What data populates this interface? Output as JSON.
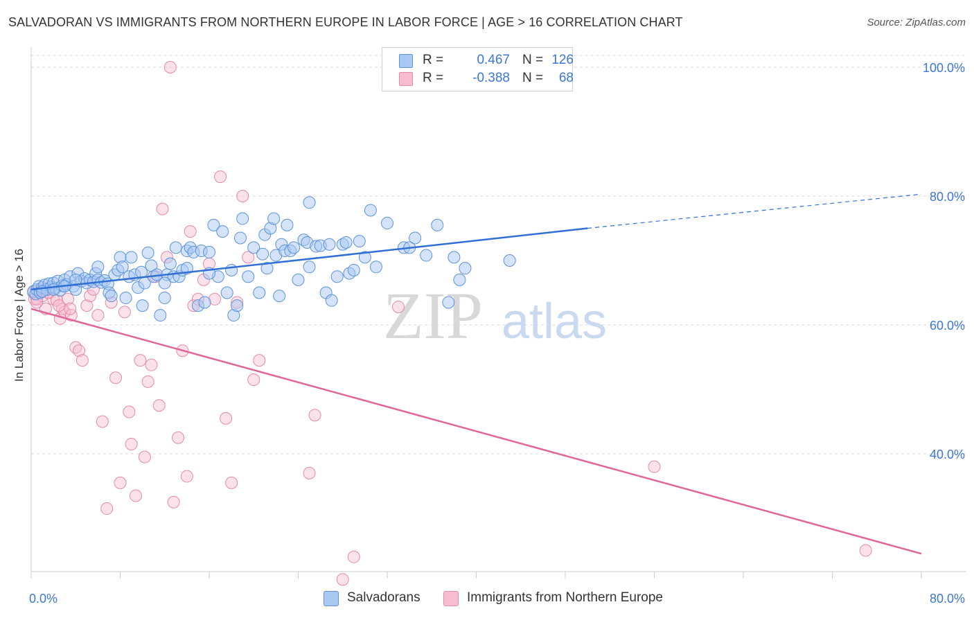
{
  "header": {
    "title": "SALVADORAN VS IMMIGRANTS FROM NORTHERN EUROPE IN LABOR FORCE | AGE > 16 CORRELATION CHART",
    "source": "Source: ZipAtlas.com"
  },
  "watermark": {
    "zip": "ZIP",
    "atlas": "atlas"
  },
  "legend": {
    "rows": [
      {
        "r_label": "R =",
        "r_value": "0.467",
        "n_label": "N =",
        "n_value": "126",
        "color": "#a9c8f2"
      },
      {
        "r_label": "R =",
        "r_value": "-0.388",
        "n_label": "N =",
        "n_value": "68",
        "color": "#f7bcd0"
      }
    ]
  },
  "bottom_legend": {
    "items": [
      {
        "label": "Salvadorans",
        "color": "#a9c8f2"
      },
      {
        "label": "Immigrants from Northern Europe",
        "color": "#f7bcd0"
      }
    ]
  },
  "colors": {
    "blue_fill": "#a9c8f2",
    "blue_stroke": "#5b93dc",
    "blue_line": "#2f6fd6",
    "pink_fill": "#f7bcd0",
    "pink_stroke": "#e58aa9",
    "pink_line": "#e0669a",
    "grid": "#d9d9d9",
    "tick_text": "#3b77d3"
  },
  "chart_data": {
    "type": "scatter",
    "title": "SALVADORAN VS IMMIGRANTS FROM NORTHERN EUROPE IN LABOR FORCE | AGE > 16 CORRELATION CHART",
    "xlabel": "",
    "ylabel": "In Labor Force | Age > 16",
    "xlim": [
      0,
      80
    ],
    "ylim": [
      20,
      100
    ],
    "x_tick_labels": [
      "0.0%",
      "80.0%"
    ],
    "y_ticks": [
      40,
      60,
      80,
      100
    ],
    "y_tick_labels": [
      "40.0%",
      "60.0%",
      "80.0%",
      "100.0%"
    ],
    "grid": true,
    "legend_placement": "top-center",
    "series": [
      {
        "name": "Salvadorans",
        "trend": {
          "x": [
            0,
            50
          ],
          "y": [
            65.5,
            75.0
          ],
          "dashed_to": [
            80,
            80.3
          ]
        },
        "points": [
          [
            0.2,
            65.2
          ],
          [
            0.4,
            64.8
          ],
          [
            0.5,
            65.5
          ],
          [
            0.7,
            66.0
          ],
          [
            0.8,
            65.0
          ],
          [
            1.0,
            65.8
          ],
          [
            1.2,
            66.2
          ],
          [
            1.4,
            65.5
          ],
          [
            1.6,
            66.4
          ],
          [
            1.8,
            65.9
          ],
          [
            2.0,
            66.5
          ],
          [
            2.2,
            65.7
          ],
          [
            2.4,
            66.8
          ],
          [
            2.6,
            65.4
          ],
          [
            2.8,
            66.1
          ],
          [
            3.0,
            67.0
          ],
          [
            3.2,
            66.3
          ],
          [
            3.5,
            67.5
          ],
          [
            3.8,
            66.0
          ],
          [
            4.0,
            65.5
          ],
          [
            4.2,
            68.0
          ],
          [
            4.5,
            66.8
          ],
          [
            4.8,
            67.2
          ],
          [
            5.0,
            66.5
          ],
          [
            5.3,
            67.0
          ],
          [
            5.6,
            66.7
          ],
          [
            5.8,
            68.0
          ],
          [
            6.0,
            67.0
          ],
          [
            6.3,
            66.6
          ],
          [
            6.6,
            66.9
          ],
          [
            6.9,
            66.4
          ],
          [
            7.0,
            65.0
          ],
          [
            7.2,
            64.5
          ],
          [
            7.5,
            67.8
          ],
          [
            7.8,
            68.5
          ],
          [
            8.0,
            70.5
          ],
          [
            8.2,
            69.0
          ],
          [
            8.5,
            64.2
          ],
          [
            8.8,
            67.5
          ],
          [
            9.0,
            70.5
          ],
          [
            9.3,
            67.8
          ],
          [
            9.6,
            65.8
          ],
          [
            9.9,
            68.2
          ],
          [
            10.0,
            63.0
          ],
          [
            10.2,
            66.5
          ],
          [
            10.5,
            71.2
          ],
          [
            10.8,
            69.2
          ],
          [
            11.0,
            67.5
          ],
          [
            11.3,
            67.8
          ],
          [
            11.6,
            61.5
          ],
          [
            12.0,
            64.2
          ],
          [
            12.2,
            67.8
          ],
          [
            12.5,
            69.5
          ],
          [
            12.8,
            67.5
          ],
          [
            13.0,
            72.0
          ],
          [
            13.3,
            67.5
          ],
          [
            13.6,
            68.5
          ],
          [
            14.0,
            71.5
          ],
          [
            14.3,
            72.0
          ],
          [
            14.6,
            71.3
          ],
          [
            15.0,
            63.0
          ],
          [
            15.3,
            71.5
          ],
          [
            15.6,
            63.5
          ],
          [
            16.0,
            71.3
          ],
          [
            16.4,
            75.5
          ],
          [
            16.8,
            67.5
          ],
          [
            17.2,
            74.5
          ],
          [
            17.6,
            65.0
          ],
          [
            18.0,
            68.5
          ],
          [
            18.2,
            61.5
          ],
          [
            18.5,
            63.0
          ],
          [
            18.8,
            73.5
          ],
          [
            19.0,
            76.5
          ],
          [
            19.5,
            67.5
          ],
          [
            20.0,
            72.0
          ],
          [
            20.5,
            65.0
          ],
          [
            20.8,
            71.0
          ],
          [
            21.0,
            74.0
          ],
          [
            21.2,
            68.8
          ],
          [
            21.5,
            75.0
          ],
          [
            21.8,
            76.5
          ],
          [
            22.0,
            70.8
          ],
          [
            22.3,
            64.5
          ],
          [
            22.5,
            72.5
          ],
          [
            22.8,
            71.5
          ],
          [
            23.0,
            75.5
          ],
          [
            23.3,
            71.5
          ],
          [
            23.6,
            72.0
          ],
          [
            24.0,
            67.0
          ],
          [
            24.5,
            73.2
          ],
          [
            24.8,
            72.8
          ],
          [
            25.0,
            69.0
          ],
          [
            25.6,
            72.2
          ],
          [
            26.0,
            72.3
          ],
          [
            26.5,
            65.0
          ],
          [
            26.8,
            72.5
          ],
          [
            27.0,
            63.8
          ],
          [
            27.5,
            67.5
          ],
          [
            28.0,
            72.5
          ],
          [
            28.3,
            72.8
          ],
          [
            28.6,
            68.0
          ],
          [
            29.0,
            68.5
          ],
          [
            29.5,
            73.0
          ],
          [
            30.0,
            70.5
          ],
          [
            30.5,
            77.8
          ],
          [
            31.0,
            69.0
          ],
          [
            32.0,
            75.8
          ],
          [
            33.5,
            72.0
          ],
          [
            34.0,
            72.0
          ],
          [
            34.5,
            73.5
          ],
          [
            35.5,
            70.8
          ],
          [
            36.5,
            75.5
          ],
          [
            37.5,
            63.5
          ],
          [
            38.0,
            70.5
          ],
          [
            38.5,
            67.0
          ],
          [
            39.0,
            68.8
          ],
          [
            43.0,
            70.0
          ],
          [
            25.0,
            79.0
          ],
          [
            16.0,
            68.0
          ],
          [
            14.0,
            68.8
          ],
          [
            12.0,
            66.5
          ],
          [
            6.0,
            69.0
          ],
          [
            4.0,
            67.0
          ],
          [
            3.0,
            66.0
          ],
          [
            2.0,
            65.5
          ],
          [
            1.0,
            65.2
          ]
        ]
      },
      {
        "name": "Immigrants from Northern Europe",
        "trend": {
          "x": [
            0,
            80
          ],
          "y": [
            62.5,
            24.5
          ]
        },
        "points": [
          [
            0.2,
            65.0
          ],
          [
            0.3,
            64.0
          ],
          [
            0.5,
            63.5
          ],
          [
            0.7,
            65.5
          ],
          [
            1.0,
            64.5
          ],
          [
            1.3,
            62.5
          ],
          [
            1.6,
            65.0
          ],
          [
            2.0,
            64.0
          ],
          [
            2.3,
            63.8
          ],
          [
            2.6,
            61.0
          ],
          [
            2.8,
            62.5
          ],
          [
            3.0,
            62.0
          ],
          [
            3.3,
            64.0
          ],
          [
            3.6,
            61.5
          ],
          [
            4.0,
            56.5
          ],
          [
            4.3,
            56.0
          ],
          [
            4.6,
            54.5
          ],
          [
            5.0,
            63.0
          ],
          [
            5.3,
            64.5
          ],
          [
            5.6,
            65.5
          ],
          [
            6.0,
            61.5
          ],
          [
            6.4,
            45.0
          ],
          [
            6.8,
            31.5
          ],
          [
            7.2,
            63.5
          ],
          [
            7.6,
            51.8
          ],
          [
            8.0,
            35.5
          ],
          [
            8.4,
            62.0
          ],
          [
            8.8,
            46.5
          ],
          [
            9.0,
            41.5
          ],
          [
            9.4,
            33.5
          ],
          [
            9.8,
            54.5
          ],
          [
            10.2,
            39.5
          ],
          [
            10.5,
            51.2
          ],
          [
            10.8,
            53.8
          ],
          [
            11.2,
            67.5
          ],
          [
            11.5,
            47.5
          ],
          [
            11.8,
            78.0
          ],
          [
            12.2,
            70.5
          ],
          [
            12.5,
            100.0
          ],
          [
            12.8,
            32.5
          ],
          [
            13.2,
            42.5
          ],
          [
            13.6,
            56.0
          ],
          [
            14.0,
            36.5
          ],
          [
            14.3,
            74.5
          ],
          [
            14.6,
            63.0
          ],
          [
            15.0,
            64.0
          ],
          [
            15.5,
            67.0
          ],
          [
            16.0,
            69.5
          ],
          [
            16.5,
            64.0
          ],
          [
            17.0,
            83.0
          ],
          [
            17.5,
            45.5
          ],
          [
            18.0,
            35.5
          ],
          [
            18.5,
            63.5
          ],
          [
            19.0,
            80.0
          ],
          [
            19.5,
            70.5
          ],
          [
            20.0,
            51.5
          ],
          [
            20.5,
            54.5
          ],
          [
            25.5,
            46.0
          ],
          [
            25.0,
            37.0
          ],
          [
            28.0,
            20.5
          ],
          [
            29.0,
            24.0
          ],
          [
            33.0,
            62.8
          ],
          [
            56.0,
            38.0
          ],
          [
            75.0,
            25.0
          ],
          [
            0.5,
            64.0
          ],
          [
            1.5,
            65.0
          ],
          [
            2.5,
            63.0
          ],
          [
            3.5,
            62.5
          ]
        ]
      }
    ]
  }
}
